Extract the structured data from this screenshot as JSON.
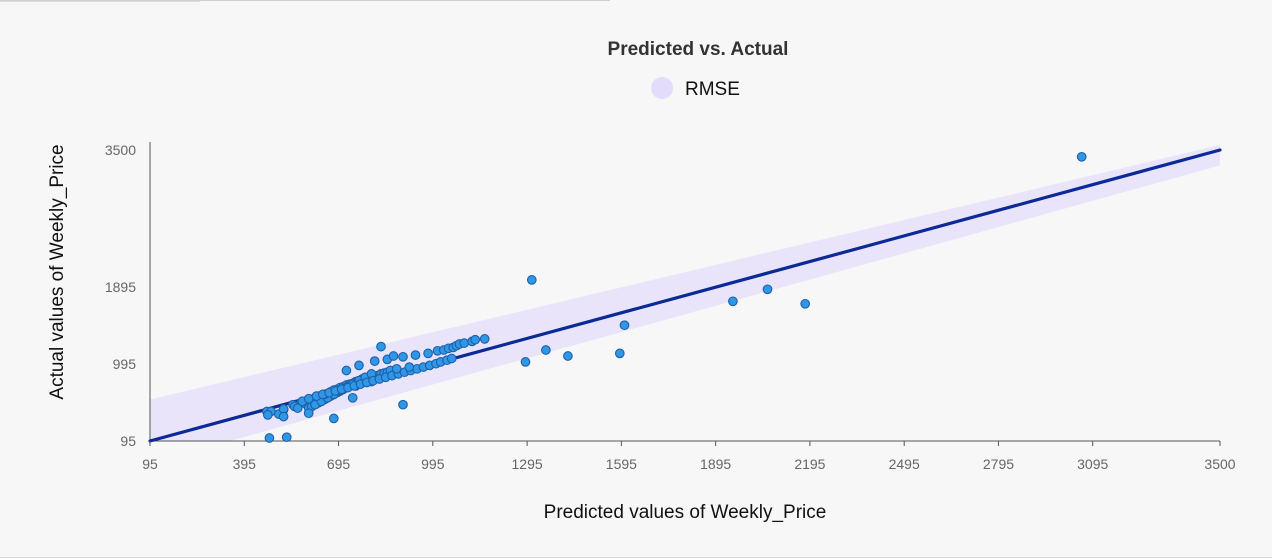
{
  "chart_data": {
    "type": "scatter",
    "title": "Predicted vs. Actual",
    "xlabel": "Predicted values of Weekly_Price",
    "ylabel": "Actual values of Weekly_Price",
    "xlim": [
      95,
      3500
    ],
    "ylim": [
      95,
      3500
    ],
    "x_ticks": [
      "95",
      "395",
      "695",
      "995",
      "1295",
      "1595",
      "1895",
      "2195",
      "2495",
      "2795",
      "3095",
      "3500"
    ],
    "y_ticks": [
      "95",
      "995",
      "1895",
      "3500"
    ],
    "legend": {
      "entries": [
        "RMSE"
      ],
      "placement": "top-center"
    },
    "colors": {
      "points": "#2f97e6",
      "point_edge": "#1d5fa8",
      "fit_line": "#0b2a96",
      "rmse_band": "#e3dcfb"
    },
    "fit_line": {
      "x": [
        95,
        3500
      ],
      "y": [
        95,
        3500
      ]
    },
    "rmse_band": {
      "x": [
        95,
        3500
      ],
      "lower": [
        -165,
        3320
      ],
      "upper": [
        580,
        3560
      ]
    },
    "series": [
      {
        "x": [
          467,
          480,
          520,
          470,
          505,
          520,
          560,
          550,
          575,
          580,
          590,
          555,
          565,
          600,
          610,
          620,
          630,
          640,
          650,
          660,
          670,
          680,
          690,
          700,
          710,
          720,
          730,
          740,
          750,
          760,
          770,
          780,
          790,
          800,
          810,
          820,
          830,
          840,
          850,
          860,
          600,
          610,
          620,
          630,
          640,
          650,
          660,
          670,
          680,
          690,
          700,
          710,
          720,
          730,
          740,
          750,
          760,
          770,
          780,
          620,
          640,
          660,
          680,
          700,
          720,
          740,
          760,
          780,
          800,
          650,
          700,
          750,
          800,
          580,
          600,
          625,
          645,
          665,
          685,
          705,
          725,
          745,
          765,
          785,
          805,
          825,
          845,
          865,
          885,
          905,
          925,
          945,
          965,
          985,
          1005,
          1020,
          1040,
          1055,
          720,
          760,
          850,
          900,
          940,
          980,
          1010,
          1030,
          1045,
          1060,
          1070,
          1080,
          1095,
          1120,
          1130,
          1160,
          1290,
          1310,
          1355,
          1425,
          1590,
          1605,
          1950,
          2060,
          2180,
          3060,
          880,
          920,
          830,
          870,
          810,
          900,
          520,
          475,
          530,
          600,
          680,
          740
        ],
        "y": [
          440,
          440,
          460,
          400,
          410,
          470,
          500,
          520,
          540,
          560,
          530,
          500,
          480,
          550,
          570,
          600,
          620,
          610,
          640,
          650,
          670,
          690,
          700,
          720,
          730,
          750,
          760,
          770,
          790,
          800,
          810,
          820,
          830,
          840,
          850,
          860,
          880,
          890,
          900,
          920,
          480,
          500,
          520,
          540,
          560,
          580,
          600,
          620,
          640,
          660,
          680,
          700,
          720,
          740,
          760,
          780,
          800,
          820,
          840,
          520,
          560,
          600,
          640,
          680,
          720,
          760,
          800,
          840,
          880,
          640,
          690,
          740,
          790,
          560,
          590,
          620,
          640,
          660,
          680,
          700,
          720,
          740,
          760,
          780,
          800,
          820,
          840,
          860,
          880,
          900,
          920,
          940,
          960,
          980,
          1000,
          1020,
          1040,
          1060,
          920,
          980,
          1050,
          1080,
          1100,
          1120,
          1150,
          1160,
          1180,
          1190,
          1210,
          1230,
          1240,
          1260,
          1280,
          1290,
          1020,
          1980,
          1160,
          1090,
          1120,
          1450,
          1730,
          1870,
          1700,
          3420,
          940,
          960,
          1200,
          1090,
          1030,
          520,
          380,
          130,
          140,
          420,
          360,
          600
        ]
      }
    ]
  }
}
